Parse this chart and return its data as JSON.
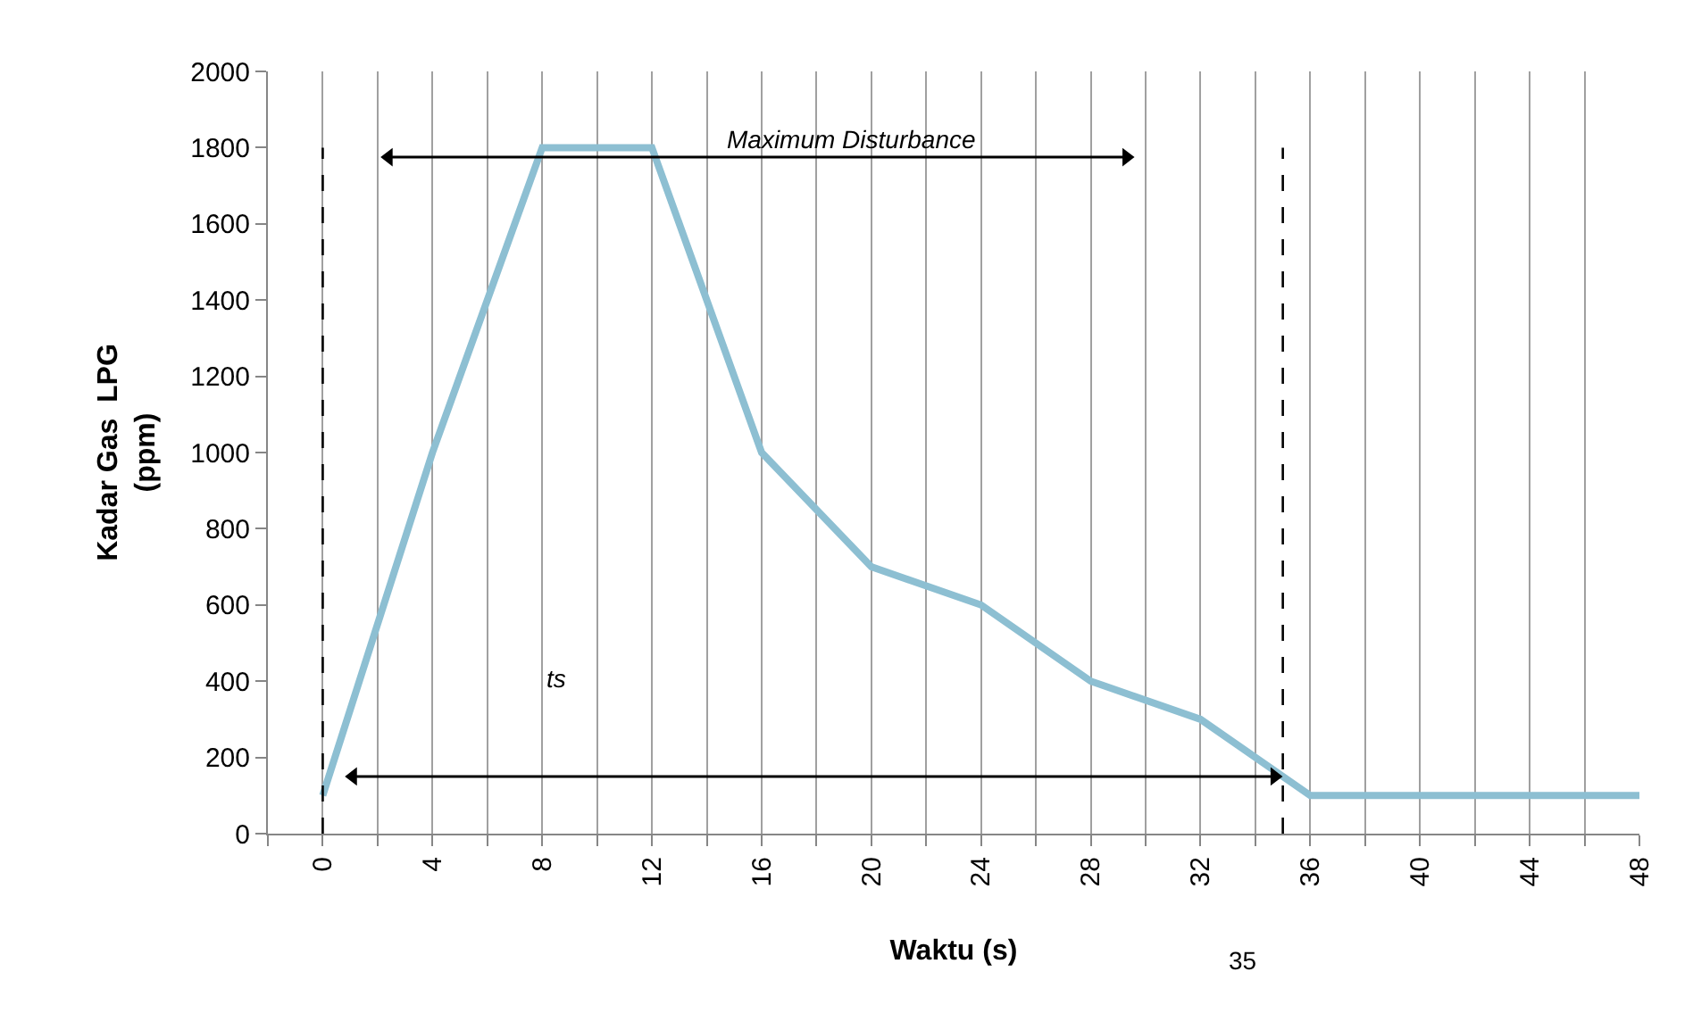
{
  "chart_data": {
    "type": "line",
    "xlabel": "Waktu (s)",
    "ylabel": "Kadar Gas  LPG\n(ppm)",
    "x": [
      0,
      4,
      8,
      12,
      16,
      20,
      24,
      28,
      32,
      36,
      40,
      44,
      48
    ],
    "series": [
      {
        "color": "#8dbfd2",
        "values": [
          100,
          1000,
          1800,
          1800,
          1000,
          700,
          600,
          400,
          300,
          100,
          100,
          100,
          100
        ]
      },
      {
        "type": "line",
        "color": "#000000",
        "marker": "triangle",
        "x": [
          2.4,
          29.3
        ],
        "values": [
          1775,
          1775
        ]
      },
      {
        "type": "line",
        "color": "#000000",
        "marker": "triangle",
        "x": [
          1.1,
          34.7
        ],
        "values": [
          150,
          150
        ]
      }
    ],
    "xlim": [
      -2,
      48
    ],
    "xticks": [
      {
        "value": -2,
        "label": null
      },
      0,
      {
        "value": 2,
        "label": null
      },
      4,
      {
        "value": 6,
        "label": null
      },
      8,
      {
        "value": 10,
        "label": null
      },
      12,
      {
        "value": 14,
        "label": null
      },
      16,
      {
        "value": 18,
        "label": null
      },
      20,
      {
        "value": 22,
        "label": null
      },
      24,
      {
        "value": 26,
        "label": null
      },
      28,
      {
        "value": 30,
        "label": null
      },
      32,
      {
        "value": 34,
        "label": null
      },
      36,
      {
        "value": 38,
        "label": null
      },
      40,
      {
        "value": 42,
        "label": null
      },
      44,
      {
        "value": 46,
        "label": null
      },
      48
    ],
    "ylim": [
      0,
      2000
    ],
    "yticks": [
      0,
      200,
      400,
      600,
      800,
      1000,
      1200,
      1400,
      1600,
      1800,
      2000
    ],
    "grid": "x",
    "ref_lines": [
      {
        "axis": "x",
        "value": 0,
        "line_style": "dashed",
        "color": "#000000"
      },
      {
        "axis": "x",
        "value": 35,
        "line_style": "dashed",
        "color": "#000000",
        "label": "35"
      }
    ],
    "annotations": [
      "Maximum Disturbance",
      "ts"
    ]
  }
}
